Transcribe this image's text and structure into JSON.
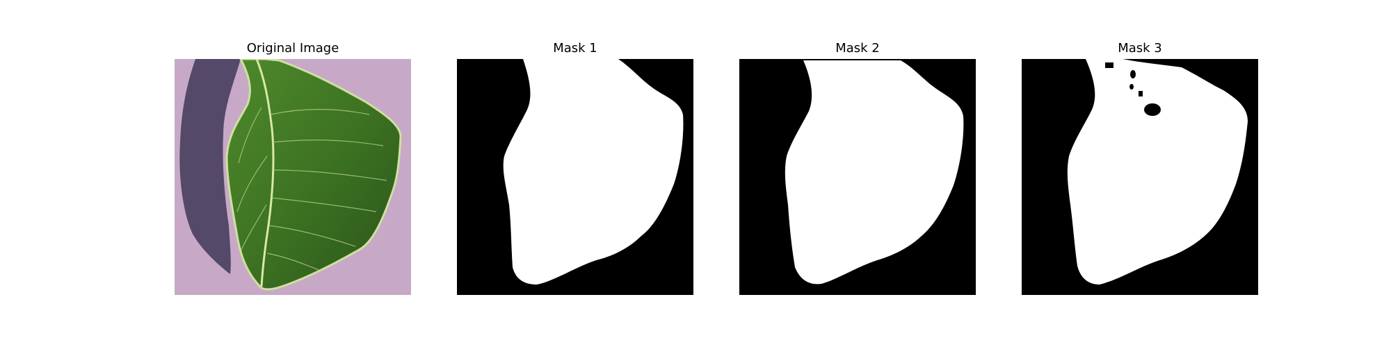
{
  "panels": [
    {
      "title": "Original Image"
    },
    {
      "title": "Mask 1"
    },
    {
      "title": "Mask 2"
    },
    {
      "title": "Mask 3"
    }
  ],
  "colors": {
    "background": "#ffffff",
    "mask_background": "#000000",
    "mask_foreground": "#ffffff",
    "paper": "#c7a9c7",
    "shadow": "#4a4160",
    "leaf_dark": "#2f5a1c",
    "leaf_mid": "#3f7a25",
    "leaf_light": "#cfe0a0"
  }
}
